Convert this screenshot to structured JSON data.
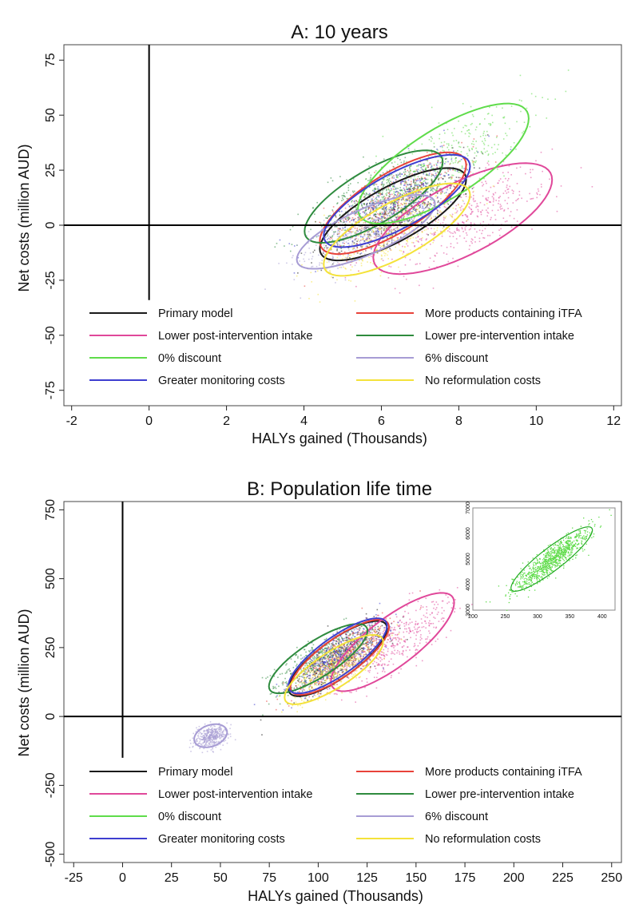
{
  "chart_data": [
    {
      "type": "scatter",
      "title": "A: 10 years",
      "xlabel": "HALYs gained (Thousands)",
      "ylabel": "Net costs (million AUD)",
      "xlim": [
        -2.2,
        12.2
      ],
      "ylim": [
        -82,
        82
      ],
      "xticks": [
        -2,
        0,
        2,
        4,
        6,
        8,
        10,
        12
      ],
      "yticks": [
        -75,
        -50,
        -25,
        0,
        25,
        50,
        75
      ],
      "reference_lines": {
        "x0": {
          "x": 0,
          "y_from": -34,
          "y_to": 82
        },
        "y0": {
          "y": 0
        }
      },
      "series": [
        {
          "name": "Primary model",
          "color": "#1a1a1a",
          "center": [
            6.3,
            5
          ],
          "spread": [
            0.9,
            10
          ],
          "rho": 0.75
        },
        {
          "name": "More products containing iTFA",
          "color": "#e8423a",
          "center": [
            6.3,
            10
          ],
          "spread": [
            0.9,
            11
          ],
          "rho": 0.75
        },
        {
          "name": "Lower post-intervention intake",
          "color": "#e0489a",
          "center": [
            8.1,
            3
          ],
          "spread": [
            1.1,
            12
          ],
          "rho": 0.7
        },
        {
          "name": "Lower pre-intervention intake",
          "color": "#2e8b3e",
          "center": [
            5.8,
            13
          ],
          "spread": [
            0.85,
            10
          ],
          "rho": 0.75
        },
        {
          "name": "0% discount",
          "color": "#5fdc4a",
          "center": [
            7.6,
            28
          ],
          "spread": [
            1.05,
            13
          ],
          "rho": 0.75
        },
        {
          "name": "6% discount",
          "color": "#a79cd4",
          "center": [
            5.6,
            -3
          ],
          "spread": [
            0.85,
            8
          ],
          "rho": 0.75
        },
        {
          "name": "Greater monitoring costs",
          "color": "#3e3ed0",
          "center": [
            6.4,
            11
          ],
          "spread": [
            0.9,
            10
          ],
          "rho": 0.75
        },
        {
          "name": "No reformulation costs",
          "color": "#f4e23a",
          "center": [
            6.4,
            -2
          ],
          "spread": [
            0.9,
            10
          ],
          "rho": 0.75
        }
      ],
      "legend": {
        "position": "bottom-inside",
        "columns": 2
      }
    },
    {
      "type": "scatter",
      "title": "B: Population life time",
      "xlabel": "HALYs gained (Thousands)",
      "ylabel": "Net costs (million AUD)",
      "xlim": [
        -30,
        255
      ],
      "ylim": [
        -530,
        780
      ],
      "xticks": [
        -25,
        0,
        25,
        50,
        75,
        100,
        125,
        150,
        175,
        200,
        225,
        250
      ],
      "yticks": [
        -500,
        -250,
        0,
        250,
        500,
        750
      ],
      "reference_lines": {
        "x0": {
          "x": 0,
          "y_from": -150,
          "y_to": 780
        },
        "y0": {
          "y": 0
        }
      },
      "series": [
        {
          "name": "Primary model",
          "color": "#1a1a1a",
          "center": [
            110,
            210
          ],
          "spread": [
            12,
            65
          ],
          "rho": 0.8
        },
        {
          "name": "More products containing iTFA",
          "color": "#e8423a",
          "center": [
            111,
            215
          ],
          "spread": [
            12,
            65
          ],
          "rho": 0.8
        },
        {
          "name": "Lower post-intervention intake",
          "color": "#e0489a",
          "center": [
            138,
            270
          ],
          "spread": [
            15,
            85
          ],
          "rho": 0.8
        },
        {
          "name": "Lower pre-intervention intake",
          "color": "#2e8b3e",
          "center": [
            100,
            210
          ],
          "spread": [
            12,
            60
          ],
          "rho": 0.8
        },
        {
          "name": "0% discount",
          "color": "#5fdc4a",
          "center": [
            322,
            5000
          ],
          "spread": [
            30,
            600
          ],
          "rho": 0.9
        },
        {
          "name": "6% discount",
          "color": "#a79cd4",
          "center": [
            45,
            -70
          ],
          "spread": [
            4,
            20
          ],
          "rho": 0.3
        },
        {
          "name": "Greater monitoring costs",
          "color": "#3e3ed0",
          "center": [
            110,
            220
          ],
          "spread": [
            12,
            65
          ],
          "rho": 0.8
        },
        {
          "name": "No reformulation costs",
          "color": "#f4e23a",
          "center": [
            108,
            170
          ],
          "spread": [
            12,
            60
          ],
          "rho": 0.8
        }
      ],
      "legend": {
        "position": "bottom-inside",
        "columns": 2
      },
      "inset": {
        "series": "0% discount",
        "xlim": [
          200,
          420
        ],
        "ylim": [
          3000,
          7000
        ],
        "xticks": [
          200,
          250,
          300,
          350,
          400
        ],
        "yticks": [
          3000,
          4000,
          5000,
          6000,
          7000
        ]
      }
    }
  ]
}
